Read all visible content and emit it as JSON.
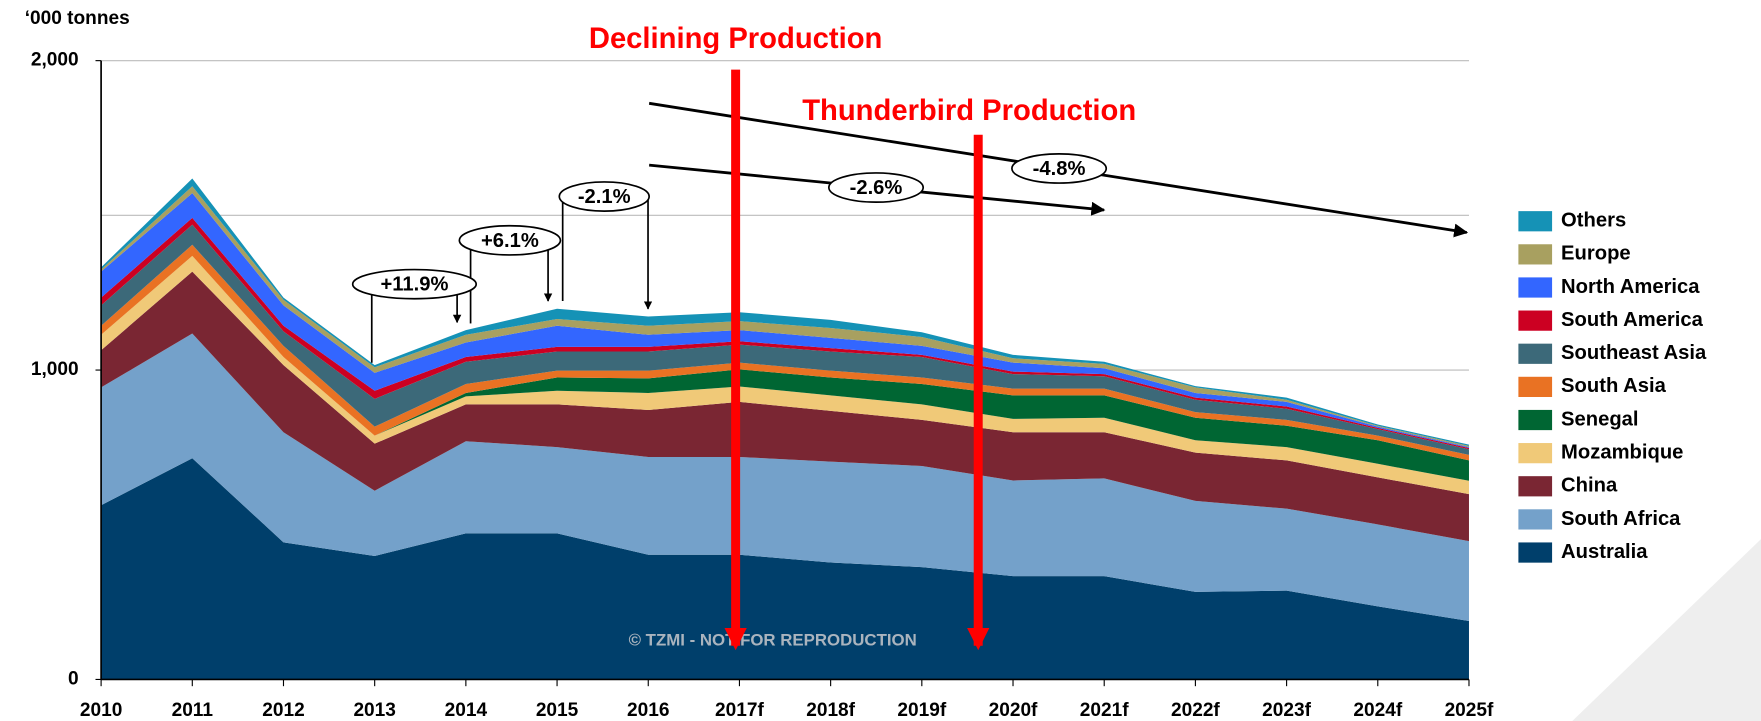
{
  "chart_data": {
    "type": "stacked_area",
    "y_axis_label": "‘000 tonnes",
    "categories": [
      "2010",
      "2011",
      "2012",
      "2013",
      "2014",
      "2015",
      "2016",
      "2017f",
      "2018f",
      "2019f",
      "2020f",
      "2021f",
      "2022f",
      "2023f",
      "2024f",
      "2025f"
    ],
    "series": [
      {
        "name": "Australia",
        "color": "#003f6b",
        "values": [
          563,
          715,
          443,
          399,
          472,
          472,
          403,
          403,
          378,
          363,
          334,
          334,
          283,
          287,
          236,
          189
        ]
      },
      {
        "name": "South Africa",
        "color": "#74a1ca",
        "values": [
          381,
          403,
          356,
          211,
          298,
          279,
          316,
          316,
          326,
          327,
          309,
          316,
          294,
          265,
          265,
          258
        ]
      },
      {
        "name": "China",
        "color": "#7a2633",
        "values": [
          120,
          200,
          217,
          152,
          119,
          138,
          152,
          178,
          164,
          149,
          156,
          149,
          156,
          156,
          152,
          152
        ]
      },
      {
        "name": "Mozambique",
        "color": "#f0c978",
        "values": [
          50,
          51,
          26,
          26,
          26,
          44,
          55,
          50,
          50,
          50,
          43,
          47,
          40,
          43,
          44,
          43
        ]
      },
      {
        "name": "Senegal",
        "color": "#006633",
        "values": [
          0,
          0,
          0,
          0,
          11,
          43,
          47,
          55,
          58,
          66,
          76,
          72,
          73,
          69,
          76,
          66
        ]
      },
      {
        "name": "South Asia",
        "color": "#e97223",
        "values": [
          29,
          36,
          36,
          29,
          29,
          22,
          25,
          22,
          22,
          21,
          22,
          22,
          18,
          19,
          15,
          18
        ]
      },
      {
        "name": "Southeast Asia",
        "color": "#3c6979",
        "values": [
          66,
          65,
          47,
          90,
          72,
          62,
          62,
          58,
          62,
          66,
          47,
          40,
          40,
          36,
          21,
          18
        ]
      },
      {
        "name": "South America",
        "color": "#cc0022",
        "values": [
          25,
          22,
          18,
          26,
          15,
          15,
          15,
          11,
          11,
          7,
          8,
          7,
          7,
          7,
          4,
          4
        ]
      },
      {
        "name": "North America",
        "color": "#3366ff",
        "values": [
          84,
          80,
          66,
          58,
          47,
          68,
          39,
          36,
          33,
          29,
          29,
          19,
          15,
          15,
          4,
          3
        ]
      },
      {
        "name": "Europe",
        "color": "#a8a060",
        "values": [
          7,
          22,
          18,
          18,
          25,
          22,
          29,
          29,
          32,
          29,
          14,
          14,
          18,
          7,
          3,
          4
        ]
      },
      {
        "name": "Others",
        "color": "#1592b6",
        "values": [
          7,
          25,
          7,
          7,
          15,
          33,
          30,
          29,
          26,
          15,
          11,
          7,
          4,
          7,
          4,
          4
        ]
      }
    ],
    "ylim": [
      0,
      2000
    ],
    "yticks": [
      0,
      {
        "value": 1000,
        "label": "1,000"
      },
      {
        "value": 2000,
        "label": "2,000"
      }
    ],
    "minor_gridlines": [
      500,
      1500
    ],
    "grid": true,
    "legend": "right",
    "annotations": [
      {
        "text": "Declining Production",
        "color": "#ff0000"
      },
      {
        "text": "Thunderbird Production",
        "color": "#ff0000"
      },
      {
        "text": "+11.9%"
      },
      {
        "text": "+6.1%"
      },
      {
        "text": "-2.1%"
      },
      {
        "text": "-2.6%"
      },
      {
        "text": "-4.8%"
      }
    ],
    "watermark": "© TZMI - NOT FOR REPRODUCTION"
  }
}
